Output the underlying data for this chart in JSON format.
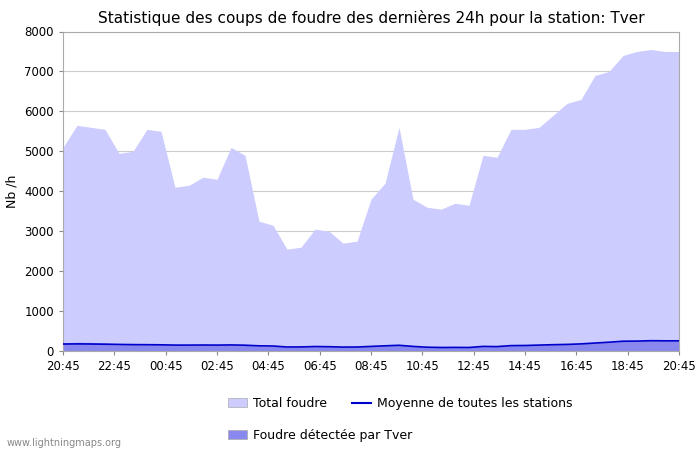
{
  "title": "Statistique des coups de foudre des dernières 24h pour la station: Tver",
  "ylabel": "Nb /h",
  "watermark": "www.lightningmaps.org",
  "x_ticks_labels": [
    "20:45",
    "22:45",
    "00:45",
    "02:45",
    "04:45",
    "06:45",
    "08:45",
    "10:45",
    "12:45",
    "14:45",
    "16:45",
    "18:45",
    "20:45"
  ],
  "ylim": [
    0,
    8000
  ],
  "yticks": [
    0,
    1000,
    2000,
    3000,
    4000,
    5000,
    6000,
    7000,
    8000
  ],
  "total_foudre": [
    5100,
    5650,
    5600,
    5550,
    4950,
    5000,
    5550,
    5500,
    4100,
    4150,
    4350,
    4300,
    5100,
    4900,
    3250,
    3150,
    2550,
    2600,
    3050,
    3000,
    2700,
    2750,
    3800,
    4200,
    5600,
    3800,
    3600,
    3550,
    3700,
    3650,
    4900,
    4850,
    5550,
    5550,
    5600,
    5900,
    6200,
    6300,
    6900,
    7000,
    7400,
    7500,
    7550,
    7500,
    7500
  ],
  "tver_foudre": [
    200,
    220,
    215,
    205,
    180,
    170,
    165,
    160,
    150,
    150,
    155,
    152,
    158,
    148,
    130,
    125,
    100,
    105,
    115,
    112,
    100,
    105,
    120,
    135,
    148,
    120,
    100,
    90,
    95,
    92,
    120,
    115,
    140,
    145,
    155,
    165,
    175,
    185,
    210,
    230,
    255,
    260,
    270,
    265,
    265
  ],
  "moyenne": [
    175,
    178,
    175,
    170,
    165,
    160,
    158,
    155,
    148,
    148,
    150,
    148,
    152,
    145,
    130,
    125,
    100,
    102,
    112,
    108,
    98,
    100,
    115,
    130,
    143,
    115,
    95,
    88,
    90,
    88,
    115,
    110,
    135,
    138,
    148,
    158,
    165,
    178,
    200,
    220,
    245,
    248,
    258,
    255,
    255
  ],
  "total_color": "#ccccff",
  "tver_color": "#8888ee",
  "moyenne_color": "#0000cc",
  "bg_color": "#ffffff",
  "plot_bg_color": "#ffffff",
  "grid_color": "#cccccc",
  "legend_total": "Total foudre",
  "legend_tver": "Foudre détectée par Tver",
  "legend_moyenne": "Moyenne de toutes les stations",
  "title_fontsize": 11,
  "axis_fontsize": 9,
  "tick_fontsize": 8.5
}
